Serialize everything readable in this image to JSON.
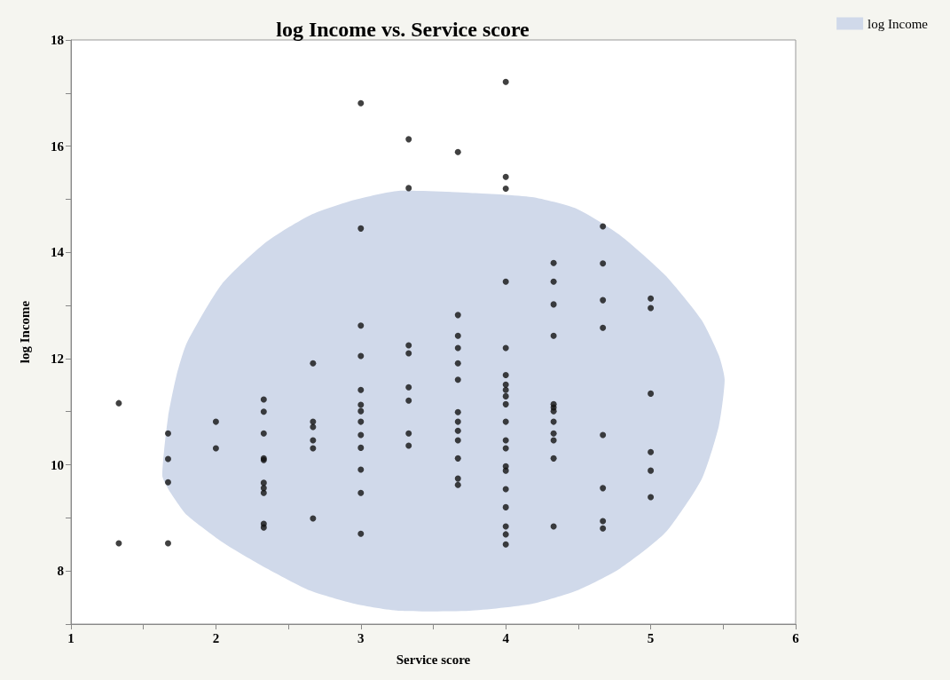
{
  "chart_data": {
    "type": "scatter",
    "title": "log Income vs. Service score",
    "xlabel": "Service score",
    "ylabel": "log Income",
    "xlim": [
      1,
      6
    ],
    "xticks": [
      1,
      {
        "value": 1.5,
        "label": null
      },
      2,
      {
        "value": 2.5,
        "label": null
      },
      3,
      {
        "value": 3.5,
        "label": null
      },
      4,
      {
        "value": 4.5,
        "label": null
      },
      5,
      {
        "value": 5.5,
        "label": null
      },
      6
    ],
    "ylim": [
      7,
      18
    ],
    "yticks": [
      {
        "value": 7,
        "label": null
      },
      8,
      {
        "value": 9,
        "label": null
      },
      10,
      {
        "value": 11,
        "label": null
      },
      12,
      {
        "value": 13,
        "label": null
      },
      14,
      {
        "value": 15,
        "label": null
      },
      16,
      {
        "value": 17,
        "label": null
      },
      18
    ],
    "grid": false,
    "legend": "top right",
    "series": [
      {
        "type": "area",
        "name": "log Income",
        "color": "#d0d9ea",
        "marker": "none",
        "x": [
          1.63,
          1.67,
          1.73,
          1.8,
          2.04,
          2.35,
          2.65,
          2.96,
          3.26,
          3.75,
          4.18,
          4.49,
          4.79,
          5.1,
          5.35,
          5.47,
          5.51,
          5.47,
          5.35,
          5.1,
          4.79,
          4.49,
          4.18,
          3.75,
          3.26,
          2.96,
          2.65,
          2.35,
          2.04,
          1.8,
          1.73,
          1.67
        ],
        "values": [
          9.8,
          10.9,
          11.7,
          12.3,
          13.4,
          14.2,
          14.7,
          14.99,
          15.16,
          15.12,
          15.04,
          14.82,
          14.32,
          13.57,
          12.73,
          12.06,
          11.6,
          10.73,
          9.72,
          8.72,
          8.05,
          7.63,
          7.38,
          7.25,
          7.25,
          7.38,
          7.63,
          8.05,
          8.55,
          9.05,
          9.3,
          9.55
        ]
      },
      {
        "color": "#111111",
        "marker": "circle",
        "x": [
          1.33,
          1.33,
          1.67,
          1.67,
          1.67,
          1.67,
          2,
          2,
          2.33,
          2.33,
          2.33,
          2.33,
          2.33,
          2.33,
          2.33,
          2.33,
          2.33,
          2.33,
          2.67,
          2.67,
          2.67,
          2.67,
          2.67,
          2.67,
          3,
          3,
          3,
          3,
          3,
          3,
          3,
          3,
          3,
          3,
          3,
          3,
          3,
          3.33,
          3.33,
          3.33,
          3.33,
          3.33,
          3.33,
          3.33,
          3.33,
          3.67,
          3.67,
          3.67,
          3.67,
          3.67,
          3.67,
          3.67,
          3.67,
          3.67,
          3.67,
          3.67,
          3.67,
          3.67,
          4,
          4,
          4,
          4,
          4,
          4,
          4,
          4,
          4,
          4,
          4,
          4,
          4,
          4,
          4,
          4,
          4,
          4,
          4,
          4,
          4.33,
          4.33,
          4.33,
          4.33,
          4.33,
          4.33,
          4.33,
          4.33,
          4.33,
          4.33,
          4.33,
          4.33,
          4.67,
          4.67,
          4.67,
          4.67,
          4.67,
          4.67,
          4.67,
          4.67,
          5,
          5,
          5,
          5,
          5,
          5
        ],
        "values": [
          11.16,
          8.52,
          10.59,
          10.11,
          9.67,
          8.52,
          10.81,
          10.31,
          11.23,
          11.0,
          10.59,
          10.12,
          10.09,
          9.66,
          9.56,
          9.47,
          8.89,
          8.82,
          11.91,
          10.81,
          10.71,
          10.46,
          10.31,
          8.99,
          16.81,
          14.45,
          12.62,
          12.05,
          11.41,
          11.13,
          11.01,
          10.81,
          10.56,
          10.32,
          9.91,
          9.47,
          8.7,
          16.13,
          15.21,
          12.25,
          12.1,
          11.46,
          11.21,
          10.59,
          10.36,
          15.89,
          12.82,
          12.43,
          12.2,
          11.91,
          11.6,
          10.99,
          10.81,
          10.64,
          10.46,
          10.12,
          9.74,
          9.62,
          17.21,
          15.42,
          15.2,
          13.45,
          12.2,
          11.69,
          11.51,
          11.41,
          11.29,
          11.14,
          10.81,
          10.46,
          10.31,
          9.97,
          9.89,
          9.54,
          9.2,
          8.84,
          8.69,
          8.5,
          13.8,
          13.45,
          13.02,
          12.43,
          11.14,
          11.08,
          11.01,
          10.81,
          10.59,
          10.46,
          10.12,
          8.84,
          14.49,
          13.79,
          13.1,
          12.58,
          10.56,
          9.56,
          8.94,
          8.8,
          13.13,
          12.95,
          11.34,
          10.24,
          9.89,
          9.39
        ]
      }
    ]
  }
}
